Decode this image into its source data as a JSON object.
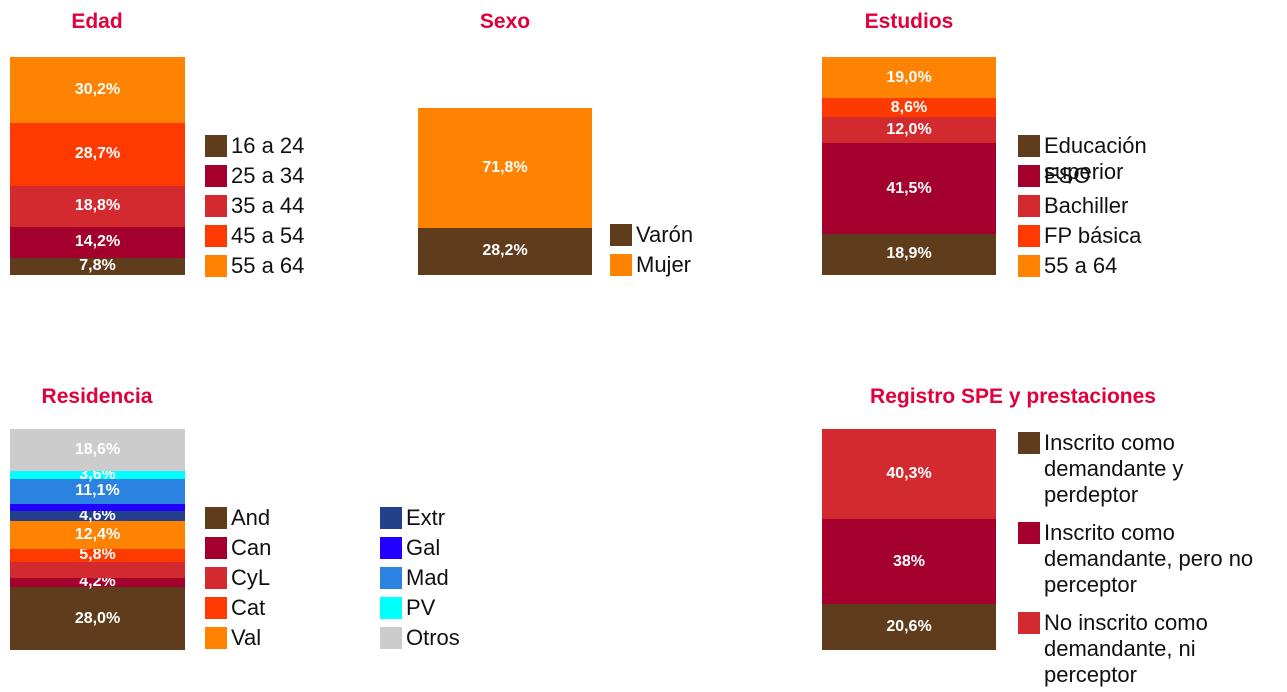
{
  "chart_data": [
    {
      "type": "stacked_bar",
      "title": "Edad",
      "series": [
        {
          "name": "16 a 24",
          "color": "#5e3c1c",
          "values": [
            7.8
          ],
          "value_labels": [
            "7,8%"
          ]
        },
        {
          "name": "25 a 34",
          "color": "#a3002d",
          "values": [
            14.2
          ],
          "value_labels": [
            "14,2%"
          ]
        },
        {
          "name": "35 a 44",
          "color": "#d32a30",
          "values": [
            18.8
          ],
          "value_labels": [
            "18,8%"
          ]
        },
        {
          "name": "45 a 54",
          "color": "#ff3a00",
          "values": [
            28.7
          ],
          "value_labels": [
            "28,7%"
          ]
        },
        {
          "name": "55 a 64",
          "color": "#ff8200",
          "values": [
            30.2
          ],
          "value_labels": [
            "30,2%"
          ]
        }
      ]
    },
    {
      "type": "stacked_bar",
      "title": "Sexo",
      "series": [
        {
          "name": "Varón",
          "color": "#5e3c1c",
          "values": [
            28.2
          ],
          "value_labels": [
            "28,2%"
          ]
        },
        {
          "name": "Mujer",
          "color": "#ff8200",
          "values": [
            71.8
          ],
          "value_labels": [
            "71,8%"
          ]
        }
      ]
    },
    {
      "type": "stacked_bar",
      "title": "Estudios",
      "series": [
        {
          "name": "Educación superior",
          "color": "#5e3c1c",
          "values": [
            18.9
          ],
          "value_labels": [
            "18,9%"
          ]
        },
        {
          "name": "ESO",
          "color": "#a3002d",
          "values": [
            41.5
          ],
          "value_labels": [
            "41,5%"
          ]
        },
        {
          "name": "Bachiller",
          "color": "#d32a30",
          "values": [
            12.0
          ],
          "value_labels": [
            "12,0%"
          ]
        },
        {
          "name": "FP básica",
          "color": "#ff3a00",
          "values": [
            8.6
          ],
          "value_labels": [
            "8,6%"
          ]
        },
        {
          "name": "55 a 64",
          "color": "#ff8200",
          "values": [
            19.0
          ],
          "value_labels": [
            "19,0%"
          ]
        }
      ]
    },
    {
      "type": "stacked_bar",
      "title": "Residencia",
      "series": [
        {
          "name": "And",
          "color": "#5e3c1c",
          "values": [
            28.0
          ],
          "value_labels": [
            "28,0%"
          ]
        },
        {
          "name": "Can",
          "color": "#a3002d",
          "values": [
            4.2
          ],
          "value_labels": [
            "4,2%"
          ]
        },
        {
          "name": "CyL",
          "color": "#d32a30",
          "values": [
            7.0
          ]
        },
        {
          "name": "Cat",
          "color": "#ff3a00",
          "values": [
            5.8
          ],
          "value_labels": [
            "5,8%"
          ]
        },
        {
          "name": "Val",
          "color": "#ff8200",
          "values": [
            12.4
          ],
          "value_labels": [
            "12,4%"
          ]
        },
        {
          "name": "Extr",
          "color": "#23418b",
          "values": [
            4.6
          ],
          "value_labels": [
            "4,6%"
          ]
        },
        {
          "name": "Gal",
          "color": "#2200ff",
          "values": [
            3.0
          ]
        },
        {
          "name": "Mad",
          "color": "#2b82e0",
          "values": [
            11.1
          ],
          "value_labels": [
            "11,1%"
          ]
        },
        {
          "name": "PV",
          "color": "#00ffff",
          "values": [
            3.6
          ],
          "value_labels": [
            "3,6%"
          ]
        },
        {
          "name": "Otros",
          "color": "#cccccc",
          "values": [
            18.6
          ],
          "value_labels": [
            "18,6%"
          ]
        }
      ]
    },
    {
      "type": "stacked_bar",
      "title": "Registro SPE y prestaciones",
      "series": [
        {
          "name": "Inscrito como demandante y perdeptor",
          "color": "#5e3c1c",
          "values": [
            20.6
          ],
          "value_labels": [
            "20,6%"
          ]
        },
        {
          "name": "Inscrito como demandante, pero no perceptor",
          "color": "#a3002d",
          "values": [
            38
          ],
          "value_labels": [
            "38%"
          ]
        },
        {
          "name": "No inscrito como demandante, ni perceptor",
          "color": "#d32a30",
          "values": [
            40.3
          ],
          "value_labels": [
            "40,3%"
          ]
        }
      ]
    }
  ]
}
